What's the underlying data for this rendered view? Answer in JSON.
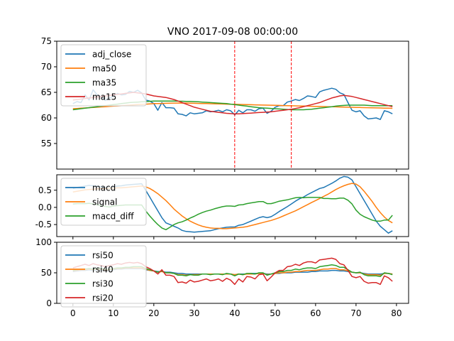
{
  "title": "VNO 2017-09-08 00:00:00",
  "colors": {
    "blue": "#1f77b4",
    "orange": "#ff7f0e",
    "green": "#2ca02c",
    "red": "#d62728",
    "vline": "#ff0000"
  },
  "chart_data": [
    {
      "type": "line",
      "panel": "price",
      "title": "VNO 2017-09-08 00:00:00",
      "xlim": [
        -4,
        83
      ],
      "ylim": [
        50,
        75
      ],
      "yticks": [
        55,
        60,
        65,
        70,
        75
      ],
      "legend": "top-left",
      "vlines": [
        40,
        54
      ],
      "series": [
        {
          "name": "adj_close",
          "color": "#1f77b4",
          "values": [
            62.8,
            63.2,
            63.0,
            64.5,
            63.5,
            65.5,
            64.5,
            64.2,
            63.4,
            63.9,
            64.2,
            64.8,
            64.5,
            64.6,
            65.2,
            65.0,
            65.4,
            64.9,
            63.5,
            63.3,
            62.8,
            61.5,
            63.0,
            62.0,
            62.0,
            61.9,
            60.8,
            60.7,
            60.4,
            61.0,
            60.8,
            60.9,
            61.0,
            61.4,
            61.2,
            61.3,
            61.5,
            61.2,
            61.6,
            61.4,
            60.6,
            61.5,
            61.0,
            61.6,
            61.6,
            61.3,
            61.8,
            61.9,
            60.9,
            61.3,
            62.1,
            62.4,
            62.4,
            63.1,
            63.3,
            63.6,
            63.4,
            63.8,
            64.3,
            64.2,
            64.0,
            65.1,
            65.4,
            65.6,
            65.8,
            65.6,
            64.9,
            64.6,
            63.0,
            61.5,
            61.2,
            61.4,
            60.4,
            59.8,
            59.9,
            60.0,
            59.7,
            61.4,
            61.2,
            60.8
          ]
        },
        {
          "name": "ma50",
          "color": "#ff7f0e",
          "values": [
            61.8,
            61.85,
            61.9,
            61.95,
            62.0,
            62.05,
            62.1,
            62.15,
            62.2,
            62.25,
            62.3,
            62.35,
            62.4,
            62.45,
            62.5,
            62.55,
            62.6,
            62.65,
            62.7,
            62.75,
            62.8,
            62.82,
            62.84,
            62.86,
            62.88,
            62.9,
            62.9,
            62.9,
            62.9,
            62.88,
            62.86,
            62.84,
            62.82,
            62.8,
            62.78,
            62.76,
            62.74,
            62.72,
            62.7,
            62.68,
            62.66,
            62.64,
            62.62,
            62.6,
            62.58,
            62.56,
            62.54,
            62.52,
            62.5,
            62.48,
            62.46,
            62.44,
            62.42,
            62.4,
            62.38,
            62.36,
            62.34,
            62.32,
            62.3,
            62.28,
            62.26,
            62.24,
            62.22,
            62.2,
            62.18,
            62.16,
            62.14,
            62.12,
            62.1,
            62.08,
            62.06,
            62.04,
            62.02,
            62.0,
            61.98,
            61.96,
            61.94,
            61.92,
            61.9,
            61.88
          ]
        },
        {
          "name": "ma35",
          "color": "#2ca02c",
          "values": [
            61.6,
            61.7,
            61.8,
            61.9,
            62.0,
            62.1,
            62.2,
            62.3,
            62.4,
            62.5,
            62.6,
            62.7,
            62.8,
            62.9,
            63.0,
            63.05,
            63.1,
            63.15,
            63.2,
            63.25,
            63.3,
            63.3,
            63.3,
            63.3,
            63.3,
            63.3,
            63.28,
            63.26,
            63.24,
            63.22,
            63.2,
            63.15,
            63.1,
            63.05,
            63.0,
            62.95,
            62.9,
            62.85,
            62.8,
            62.7,
            62.6,
            62.5,
            62.4,
            62.3,
            62.2,
            62.1,
            62.0,
            61.95,
            61.9,
            61.85,
            61.8,
            61.75,
            61.7,
            61.65,
            61.6,
            61.6,
            61.6,
            61.6,
            61.65,
            61.7,
            61.8,
            61.9,
            62.0,
            62.1,
            62.2,
            62.3,
            62.4,
            62.45,
            62.5,
            62.5,
            62.5,
            62.5,
            62.5,
            62.45,
            62.4,
            62.4,
            62.4,
            62.4,
            62.4,
            62.4
          ]
        },
        {
          "name": "ma15",
          "color": "#d62728",
          "values": [
            63.5,
            63.6,
            63.7,
            63.8,
            63.9,
            64.0,
            64.1,
            64.2,
            64.3,
            64.4,
            64.5,
            64.6,
            64.7,
            64.8,
            64.9,
            65.0,
            64.9,
            64.8,
            64.7,
            64.5,
            64.3,
            64.2,
            64.1,
            64.0,
            63.8,
            63.6,
            63.3,
            63.0,
            62.7,
            62.4,
            62.1,
            61.9,
            61.7,
            61.5,
            61.3,
            61.2,
            61.1,
            61.0,
            60.9,
            60.85,
            60.8,
            60.8,
            60.85,
            60.9,
            60.95,
            61.0,
            61.05,
            61.1,
            61.15,
            61.2,
            61.3,
            61.4,
            61.5,
            61.6,
            61.7,
            61.85,
            62.0,
            62.2,
            62.4,
            62.6,
            62.8,
            63.0,
            63.3,
            63.6,
            63.9,
            64.1,
            64.3,
            64.4,
            64.3,
            64.2,
            64.0,
            63.8,
            63.6,
            63.4,
            63.2,
            63.0,
            62.8,
            62.6,
            62.4,
            62.2
          ]
        }
      ]
    },
    {
      "type": "line",
      "panel": "macd",
      "xlim": [
        -4,
        83
      ],
      "ylim": [
        -0.85,
        0.95
      ],
      "yticks": [
        -0.5,
        0.0,
        0.5
      ],
      "legend": "top-left",
      "series": [
        {
          "name": "macd",
          "color": "#1f77b4",
          "values": [
            0.55,
            0.58,
            0.6,
            0.62,
            0.64,
            0.63,
            0.62,
            0.6,
            0.58,
            0.57,
            0.6,
            0.62,
            0.63,
            0.65,
            0.66,
            0.67,
            0.68,
            0.69,
            0.5,
            0.3,
            0.1,
            -0.1,
            -0.3,
            -0.45,
            -0.5,
            -0.55,
            -0.6,
            -0.67,
            -0.7,
            -0.71,
            -0.72,
            -0.71,
            -0.7,
            -0.69,
            -0.68,
            -0.65,
            -0.62,
            -0.6,
            -0.58,
            -0.57,
            -0.57,
            -0.52,
            -0.5,
            -0.45,
            -0.4,
            -0.35,
            -0.3,
            -0.27,
            -0.3,
            -0.27,
            -0.2,
            -0.12,
            -0.05,
            0.02,
            0.1,
            0.18,
            0.25,
            0.3,
            0.37,
            0.43,
            0.49,
            0.55,
            0.58,
            0.64,
            0.7,
            0.77,
            0.85,
            0.9,
            0.88,
            0.8,
            0.6,
            0.4,
            0.2,
            0.0,
            -0.2,
            -0.4,
            -0.55,
            -0.65,
            -0.75,
            -0.68
          ]
        },
        {
          "name": "signal",
          "color": "#ff7f0e",
          "values": [
            0.45,
            0.47,
            0.49,
            0.51,
            0.52,
            0.53,
            0.54,
            0.55,
            0.55,
            0.56,
            0.56,
            0.57,
            0.57,
            0.58,
            0.59,
            0.6,
            0.61,
            0.62,
            0.6,
            0.55,
            0.48,
            0.4,
            0.3,
            0.2,
            0.08,
            -0.05,
            -0.15,
            -0.25,
            -0.33,
            -0.4,
            -0.46,
            -0.51,
            -0.55,
            -0.58,
            -0.6,
            -0.61,
            -0.61,
            -0.62,
            -0.62,
            -0.61,
            -0.6,
            -0.59,
            -0.58,
            -0.56,
            -0.53,
            -0.5,
            -0.47,
            -0.44,
            -0.41,
            -0.38,
            -0.34,
            -0.3,
            -0.25,
            -0.2,
            -0.15,
            -0.1,
            -0.04,
            0.02,
            0.08,
            0.14,
            0.2,
            0.26,
            0.32,
            0.38,
            0.45,
            0.52,
            0.58,
            0.63,
            0.67,
            0.7,
            0.68,
            0.6,
            0.47,
            0.32,
            0.17,
            0.0,
            -0.15,
            -0.28,
            -0.38,
            -0.45
          ]
        },
        {
          "name": "macd_diff",
          "color": "#2ca02c",
          "values": [
            0.1,
            0.11,
            0.11,
            0.11,
            0.12,
            0.1,
            0.08,
            0.05,
            0.03,
            0.01,
            0.04,
            0.05,
            0.06,
            0.07,
            0.07,
            0.07,
            0.07,
            0.07,
            -0.1,
            -0.25,
            -0.38,
            -0.5,
            -0.6,
            -0.65,
            -0.58,
            -0.5,
            -0.45,
            -0.42,
            -0.37,
            -0.31,
            -0.26,
            -0.2,
            -0.15,
            -0.11,
            -0.08,
            -0.04,
            -0.01,
            0.02,
            0.04,
            0.04,
            0.03,
            0.07,
            0.08,
            0.11,
            0.13,
            0.15,
            0.17,
            0.17,
            0.11,
            0.11,
            0.14,
            0.18,
            0.2,
            0.22,
            0.25,
            0.28,
            0.29,
            0.28,
            0.29,
            0.29,
            0.29,
            0.29,
            0.26,
            0.26,
            0.25,
            0.25,
            0.27,
            0.27,
            0.21,
            0.1,
            -0.08,
            -0.2,
            -0.27,
            -0.32,
            -0.37,
            -0.4,
            -0.4,
            -0.37,
            -0.37,
            -0.23
          ]
        }
      ]
    },
    {
      "type": "line",
      "panel": "rsi",
      "xlim": [
        -4,
        83
      ],
      "xticks": [
        0,
        10,
        20,
        30,
        40,
        50,
        60,
        70,
        80
      ],
      "ylim": [
        0,
        100
      ],
      "yticks": [
        0,
        50,
        100
      ],
      "legend": "top-left",
      "series": [
        {
          "name": "rsi50",
          "color": "#1f77b4",
          "values": [
            52,
            53,
            54,
            54,
            55,
            54,
            55,
            55,
            54,
            54,
            55,
            56,
            56,
            57,
            57,
            57,
            57,
            57,
            55,
            54,
            53,
            52,
            52,
            51,
            51,
            50,
            49,
            49,
            48,
            48,
            48,
            48,
            48,
            48,
            48,
            48,
            48,
            48,
            48,
            48,
            47,
            48,
            48,
            48,
            49,
            49,
            49,
            49,
            48,
            48,
            49,
            49,
            50,
            50,
            50,
            51,
            51,
            51,
            51,
            52,
            52,
            53,
            53,
            53,
            54,
            54,
            53,
            53,
            52,
            51,
            50,
            50,
            49,
            48,
            48,
            48,
            48,
            49,
            49,
            48
          ]
        },
        {
          "name": "rsi40",
          "color": "#ff7f0e",
          "values": [
            53,
            54,
            55,
            55,
            56,
            55,
            56,
            56,
            55,
            55,
            56,
            57,
            57,
            58,
            58,
            58,
            58,
            58,
            56,
            54,
            53,
            51,
            52,
            50,
            50,
            49,
            47,
            47,
            46,
            47,
            47,
            47,
            48,
            48,
            48,
            48,
            48,
            48,
            48,
            48,
            47,
            48,
            47,
            48,
            48,
            48,
            49,
            49,
            47,
            48,
            49,
            50,
            50,
            51,
            51,
            52,
            52,
            53,
            54,
            54,
            54,
            55,
            56,
            56,
            57,
            57,
            55,
            55,
            53,
            51,
            50,
            50,
            48,
            47,
            47,
            47,
            46,
            49,
            49,
            48
          ]
        },
        {
          "name": "rsi30",
          "color": "#2ca02c",
          "values": [
            54,
            55,
            56,
            56,
            57,
            56,
            57,
            57,
            56,
            56,
            57,
            58,
            58,
            59,
            59,
            60,
            60,
            60,
            57,
            55,
            53,
            51,
            53,
            50,
            50,
            49,
            46,
            46,
            45,
            47,
            46,
            46,
            48,
            48,
            47,
            48,
            48,
            47,
            49,
            48,
            45,
            48,
            47,
            49,
            49,
            48,
            50,
            50,
            46,
            48,
            50,
            52,
            52,
            54,
            54,
            56,
            55,
            57,
            58,
            58,
            57,
            60,
            61,
            62,
            63,
            62,
            59,
            59,
            55,
            51,
            50,
            51,
            47,
            45,
            45,
            45,
            44,
            50,
            49,
            47
          ]
        },
        {
          "name": "rsi20",
          "color": "#d62728",
          "values": [
            58,
            60,
            62,
            64,
            62,
            65,
            63,
            62,
            60,
            62,
            63,
            65,
            64,
            66,
            67,
            66,
            67,
            65,
            60,
            57,
            53,
            48,
            55,
            46,
            46,
            44,
            34,
            35,
            33,
            38,
            35,
            36,
            38,
            40,
            37,
            38,
            40,
            36,
            41,
            38,
            31,
            40,
            35,
            44,
            43,
            40,
            47,
            48,
            37,
            43,
            50,
            54,
            54,
            60,
            61,
            64,
            62,
            66,
            68,
            68,
            66,
            71,
            72,
            73,
            74,
            72,
            65,
            63,
            54,
            44,
            42,
            44,
            36,
            33,
            34,
            34,
            31,
            45,
            42,
            36
          ]
        }
      ]
    }
  ]
}
